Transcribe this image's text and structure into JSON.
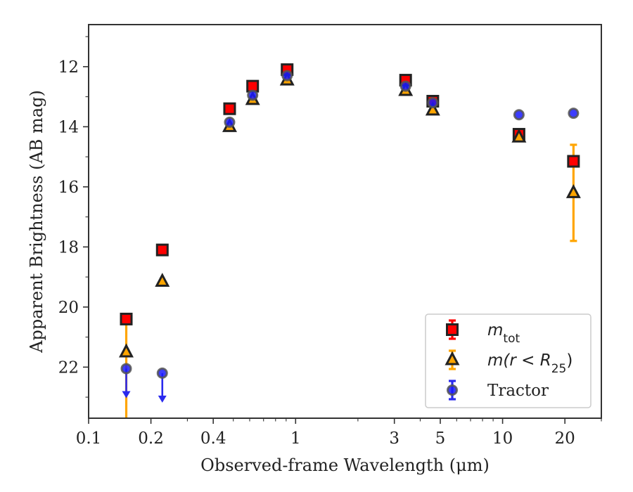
{
  "chart_data": {
    "type": "scatter",
    "xlabel": "Observed-frame Wavelength (μm)",
    "ylabel": "Apparent Brightness (AB mag)",
    "x_scale": "log",
    "y_inverted": true,
    "xlim": [
      0.1,
      30
    ],
    "ylim": [
      23.7,
      10.6
    ],
    "x_ticks": [
      0.1,
      0.2,
      0.4,
      1,
      3,
      5,
      10,
      20
    ],
    "x_tick_labels": [
      "0.1",
      "0.2",
      "0.4",
      "1",
      "3",
      "5",
      "10",
      "20"
    ],
    "y_ticks": [
      12,
      14,
      16,
      18,
      20,
      22
    ],
    "y_tick_labels": [
      "12",
      "14",
      "16",
      "18",
      "20",
      "22"
    ],
    "legend_position": "lower-right",
    "series": [
      {
        "key": "mtot",
        "legend_main": "m",
        "legend_sub": "tot",
        "marker": "square",
        "color": "#ff0000",
        "edge_color": "#222222",
        "err_color": "#ff0000",
        "x": [
          0.152,
          0.227,
          0.48,
          0.62,
          0.91,
          3.4,
          4.6,
          12.0,
          22.0
        ],
        "y": [
          20.4,
          18.1,
          13.4,
          12.65,
          12.1,
          12.45,
          13.15,
          14.25,
          15.15
        ],
        "yerr": [
          0,
          0,
          0,
          0,
          0,
          0,
          0,
          0,
          0
        ]
      },
      {
        "key": "mr25",
        "legend_main": "m(r < R",
        "legend_sub": "25",
        "legend_tail": ")",
        "marker": "triangle",
        "color": "#ffa500",
        "edge_color": "#222222",
        "err_color": "#ffa500",
        "x": [
          0.152,
          0.227,
          0.48,
          0.62,
          0.91,
          3.4,
          4.6,
          12.0,
          22.0
        ],
        "y": [
          21.5,
          19.15,
          14.0,
          13.1,
          12.45,
          12.8,
          13.45,
          14.35,
          16.2
        ],
        "yerr_low": [
          1.0,
          0,
          0,
          0,
          0,
          0,
          0,
          0,
          1.6
        ],
        "yerr_high": [
          2.25,
          0,
          0,
          0,
          0,
          0,
          0,
          0,
          1.6
        ]
      },
      {
        "key": "tractor",
        "legend_main": "Tractor",
        "marker": "circle",
        "color": "#1a1aff",
        "edge_color": "#555555",
        "err_color": "#2a2aee",
        "x": [
          0.152,
          0.227,
          0.48,
          0.62,
          0.91,
          3.4,
          4.6,
          12.0,
          22.0
        ],
        "y": [
          22.05,
          22.2,
          13.85,
          12.95,
          12.3,
          12.65,
          13.2,
          13.6,
          13.55
        ],
        "upper_limit": [
          true,
          true,
          false,
          false,
          false,
          false,
          false,
          false,
          false
        ]
      }
    ]
  }
}
